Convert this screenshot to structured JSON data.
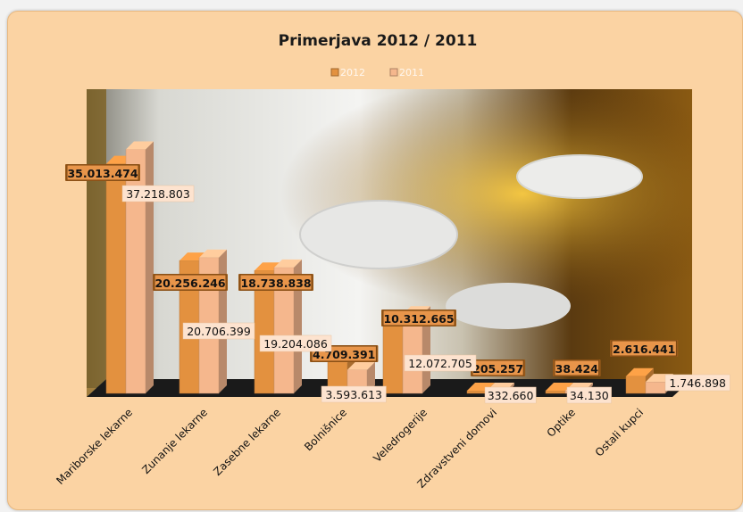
{
  "chart_data": {
    "type": "bar",
    "title": "Primerjava 2012 / 2011",
    "categories": [
      "Mariborske lekarne",
      "Zunanje lekarne",
      "Zasebne lekarne",
      "Bolnišnice",
      "Veledrogerije",
      "Zdravstveni domovi",
      "Optike",
      "Ostali kupci"
    ],
    "series": [
      {
        "name": "2012",
        "values": [
          35013474,
          20256246,
          18738838,
          4709391,
          10312665,
          205257,
          38424,
          2616441
        ],
        "labels": [
          "35.013.474",
          "20.256.246",
          "18.738.838",
          "4.709.391",
          "10.312.665",
          "205.257",
          "38.424",
          "2.616.441"
        ]
      },
      {
        "name": "2011",
        "values": [
          37218803,
          20706399,
          19204086,
          3593613,
          12072705,
          332660,
          34130,
          1746898
        ],
        "labels": [
          "37.218.803",
          "20.706.399",
          "19.204.086",
          "3.593.613",
          "12.072.705",
          "332.660",
          "34.130",
          "1.746.898"
        ]
      }
    ],
    "ylim": [
      0,
      40000000
    ],
    "legend_position": "top",
    "grid": false,
    "style": "3d-clustered-column",
    "colors": {
      "2012": "#e3913f",
      "2011": "#f5b78d",
      "background": "#fbd3a3"
    }
  }
}
